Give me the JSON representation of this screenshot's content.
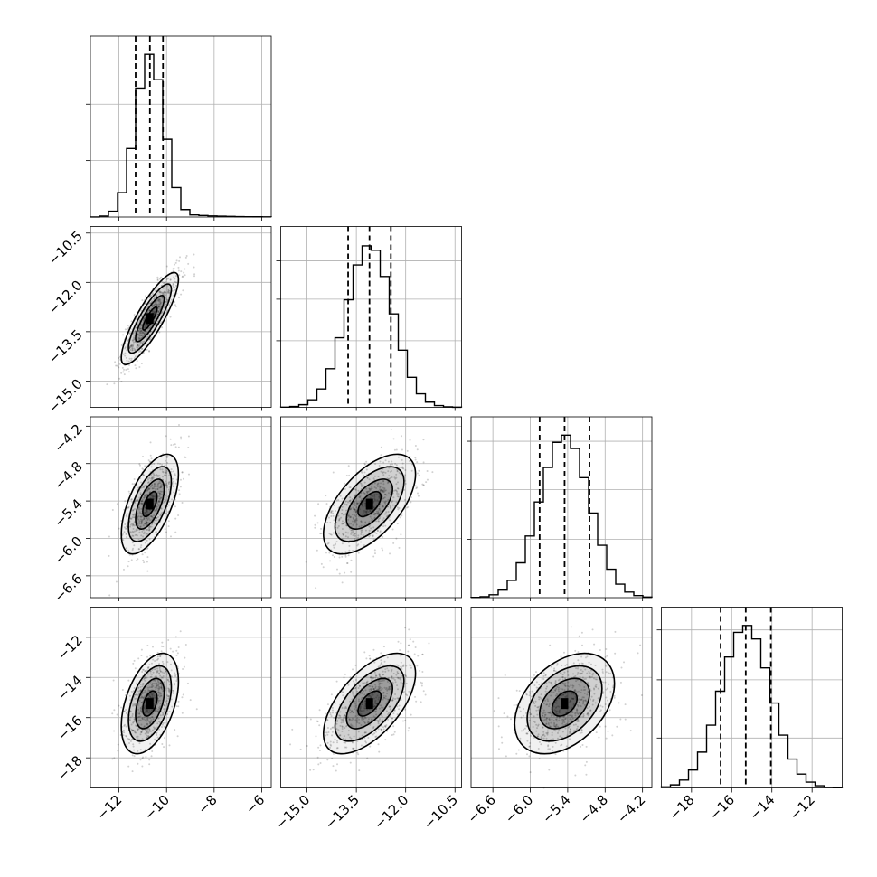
{
  "chart_data": {
    "type": "corner",
    "grid": true,
    "parameters": [
      {
        "range": [
          -13.2,
          -5.6
        ],
        "ticks": [
          -12,
          -10,
          -8,
          -6
        ],
        "tick_labels": [
          "−12",
          "−10",
          "−8",
          "−6"
        ],
        "median": -10.7,
        "q16": -11.3,
        "q84": -10.15,
        "mean": -10.7,
        "sd": 0.6,
        "hist_ymax": 1.18,
        "hist_yticks": [
          0.4,
          0.8
        ]
      },
      {
        "range": [
          -15.8,
          -10.3
        ],
        "ticks": [
          -15.0,
          -13.5,
          -12.0,
          -10.5
        ],
        "tick_labels": [
          "−15.0",
          "−13.5",
          "−12.0",
          "−10.5"
        ],
        "median": -13.1,
        "q16": -13.75,
        "q84": -12.45,
        "mean": -13.1,
        "sd": 0.7,
        "hist_ymax": 1.0,
        "hist_yticks": [
          0.4,
          0.65,
          0.88
        ]
      },
      {
        "range": [
          -6.95,
          -4.05
        ],
        "ticks": [
          -6.6,
          -6.0,
          -5.4,
          -4.8,
          -4.2
        ],
        "tick_labels": [
          "−6.6",
          "−6.0",
          "−5.4",
          "−4.8",
          "−4.2"
        ],
        "median": -5.45,
        "q16": -5.85,
        "q84": -5.05,
        "mean": -5.45,
        "sd": 0.4,
        "hist_ymax": 1.0,
        "hist_yticks": [
          0.35,
          0.65,
          0.94
        ]
      },
      {
        "range": [
          -19.5,
          -10.5
        ],
        "ticks": [
          -18,
          -16,
          -14,
          -12
        ],
        "tick_labels": [
          "−18",
          "−16",
          "−14",
          "−12"
        ],
        "median": -15.3,
        "q16": -16.55,
        "q84": -14.05,
        "mean": -15.3,
        "sd": 1.25,
        "hist_ymax": 1.0,
        "hist_yticks": [
          0.3,
          0.65,
          0.95
        ]
      }
    ],
    "pairs": [
      {
        "x": 0,
        "y": 1,
        "corr": 0.85
      },
      {
        "x": 0,
        "y": 2,
        "corr": 0.6
      },
      {
        "x": 1,
        "y": 2,
        "corr": 0.6
      },
      {
        "x": 0,
        "y": 3,
        "corr": 0.45
      },
      {
        "x": 1,
        "y": 3,
        "corr": 0.6
      },
      {
        "x": 2,
        "y": 3,
        "corr": 0.4
      }
    ],
    "contour_levels_sigma": [
      0.5,
      1.0,
      1.5,
      2.0
    ],
    "colors": {
      "lines": "#000000",
      "grid": "#b0b0b0",
      "points": "#000000"
    }
  }
}
